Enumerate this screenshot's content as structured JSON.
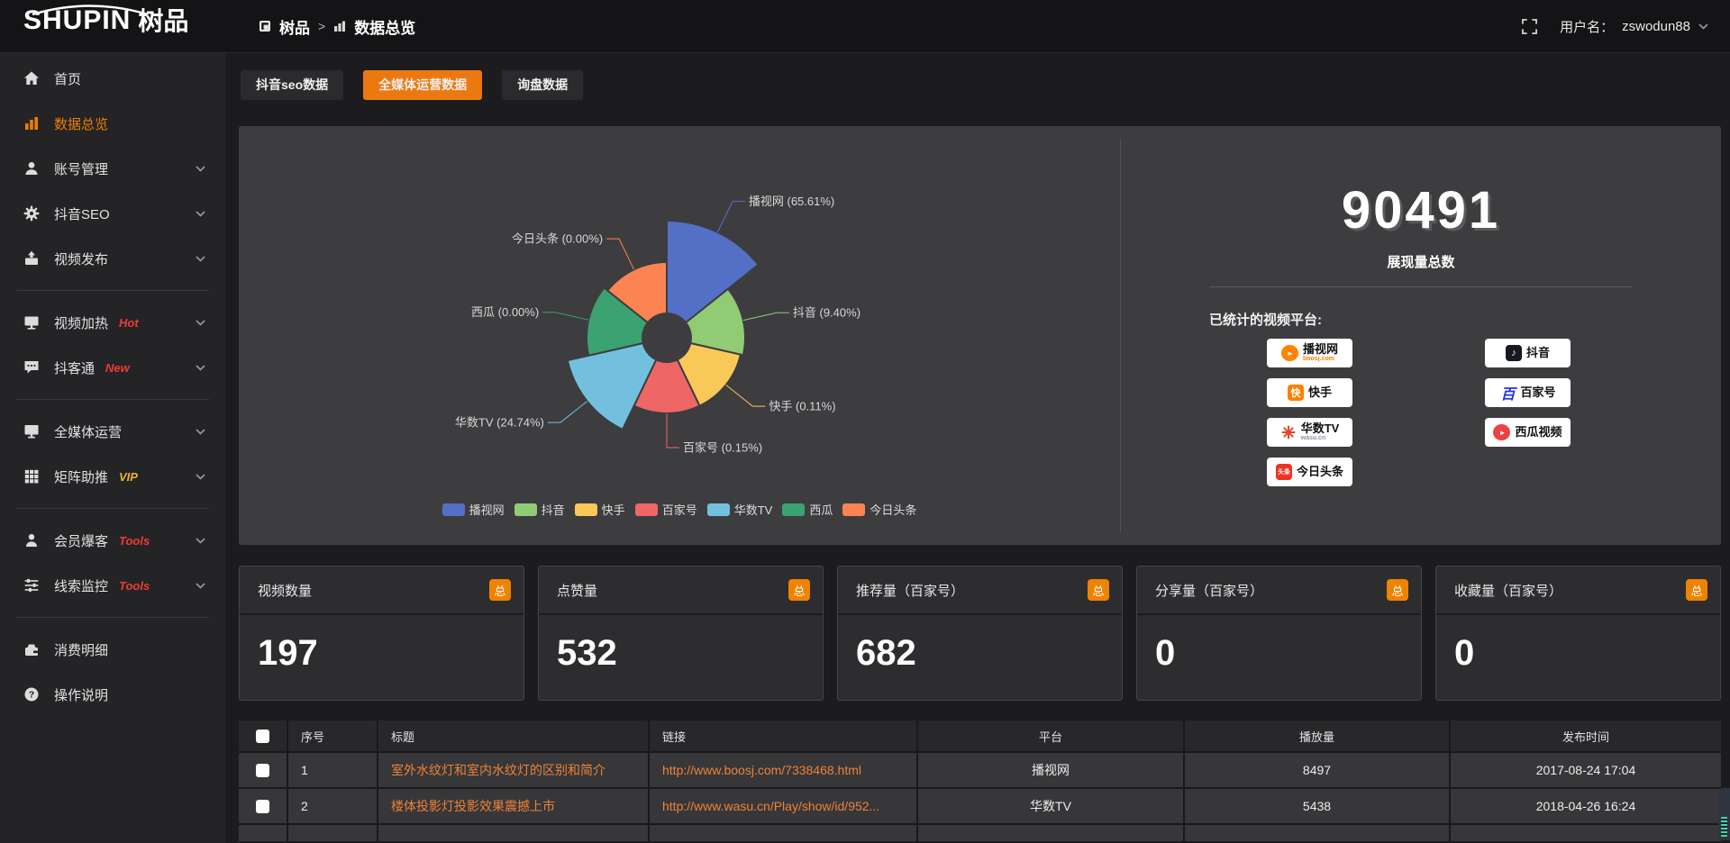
{
  "header": {
    "logo_main": "SHUPIN",
    "logo_sub": "树品",
    "breadcrumb": {
      "root": "树品",
      "separator": ">",
      "current": "数据总览"
    },
    "user_label": "用户名：",
    "username": "zswodun88"
  },
  "sidebar": {
    "items": [
      {
        "id": "home",
        "label": "首页",
        "icon": "home-icon"
      },
      {
        "id": "data-overview",
        "label": "数据总览",
        "icon": "chart-bars-icon",
        "active": true
      },
      {
        "id": "account-manage",
        "label": "账号管理",
        "icon": "user-icon",
        "chevron": true
      },
      {
        "id": "douyin-seo",
        "label": "抖音SEO",
        "icon": "gear-icon",
        "chevron": true
      },
      {
        "id": "video-publish",
        "label": "视频发布",
        "icon": "upload-box-icon",
        "chevron": true,
        "divider_after": true
      },
      {
        "id": "video-heat",
        "label": "视频加热",
        "badge": "Hot",
        "badge_color": "red",
        "icon": "screen-icon",
        "chevron": true
      },
      {
        "id": "douketong",
        "label": "抖客通",
        "badge": "New",
        "badge_color": "red",
        "icon": "chat-icon",
        "chevron": true,
        "divider_after": true
      },
      {
        "id": "media-operation",
        "label": "全媒体运营",
        "icon": "monitor-icon",
        "chevron": true
      },
      {
        "id": "matrix-boost",
        "label": "矩阵助推",
        "badge": "VIP",
        "badge_color": "yellow",
        "icon": "grid-icon",
        "chevron": true,
        "divider_after": true
      },
      {
        "id": "member-baoke",
        "label": "会员爆客",
        "badge": "Tools",
        "badge_color": "red",
        "icon": "person-icon",
        "chevron": true
      },
      {
        "id": "clue-monitor",
        "label": "线索监控",
        "badge": "Tools",
        "badge_color": "red",
        "icon": "sliders-icon",
        "chevron": true,
        "divider_after": true
      },
      {
        "id": "consumption-detail",
        "label": "消费明细",
        "icon": "wallet-icon"
      },
      {
        "id": "instructions",
        "label": "操作说明",
        "icon": "question-icon"
      }
    ]
  },
  "tabs": [
    {
      "label": "抖音seo数据",
      "active": false
    },
    {
      "label": "全媒体运营数据",
      "active": true
    },
    {
      "label": "询盘数据",
      "active": false
    }
  ],
  "chart_data": {
    "type": "pie",
    "subtype": "nightingale-rose",
    "title": "",
    "categories": [
      "播视网",
      "抖音",
      "快手",
      "百家号",
      "华数TV",
      "西瓜",
      "今日头条"
    ],
    "values": [
      65.61,
      9.4,
      0.11,
      0.15,
      24.74,
      0.0,
      0.0
    ],
    "unit": "percent",
    "labels": [
      "播视网 (65.61%)",
      "抖音 (9.40%)",
      "快手 (0.11%)",
      "百家号 (0.15%)",
      "华数TV (24.74%)",
      "西瓜 (0.00%)",
      "今日头条 (0.00%)"
    ],
    "colors": [
      "#5470C6",
      "#91CC75",
      "#FAC858",
      "#EE6666",
      "#73C0DE",
      "#3BA272",
      "#FC8452"
    ],
    "radii": [
      130,
      87,
      84,
      84,
      113,
      89,
      84
    ],
    "inner_radius": 27,
    "legend_position": "bottom",
    "legend": [
      "播视网",
      "抖音",
      "快手",
      "百家号",
      "华数TV",
      "西瓜",
      "今日头条"
    ]
  },
  "summary": {
    "total_value": "90491",
    "total_label": "展现量总数",
    "platforms_label": "已统计的视频平台:",
    "platform_badges": [
      {
        "name": "播视网",
        "sub": "boosj.com",
        "sub_color": "#f08200",
        "logo": "boosj-play-icon",
        "logo_type": "circle-play",
        "logo_color": "#ff8300"
      },
      {
        "name": "快手",
        "logo": "kuaishou-icon",
        "logo_type": "square-glyph",
        "glyph": "快",
        "logo_color": "#ff7e00"
      },
      {
        "name": "华数TV",
        "sub": "wasu.cn",
        "sub_color": "#8a94a8",
        "logo": "wasu-sunburst-icon",
        "logo_type": "sunburst",
        "logo_color": "#e8432d"
      },
      {
        "name": "今日头条",
        "logo": "toutiao-icon",
        "logo_type": "square-glyph",
        "glyph": "头条",
        "logo_color": "#ed3321"
      },
      {
        "name": "抖音",
        "logo": "douyin-icon",
        "logo_type": "square-glyph",
        "glyph": "♪",
        "logo_color": "#161823"
      },
      {
        "name": "百家号",
        "logo": "baijiahao-icon",
        "logo_type": "text-glyph",
        "glyph": "百",
        "logo_color": "#2932E1"
      },
      {
        "name": "西瓜视频",
        "logo": "xigua-icon",
        "logo_type": "circle-play",
        "logo_color": "#f04142"
      }
    ]
  },
  "stat_cards": [
    {
      "title": "视频数量",
      "badge": "总",
      "value": "197"
    },
    {
      "title": "点赞量",
      "badge": "总",
      "value": "532"
    },
    {
      "title": "推荐量（百家号）",
      "badge": "总",
      "value": "682"
    },
    {
      "title": "分享量（百家号）",
      "badge": "总",
      "value": "0"
    },
    {
      "title": "收藏量（百家号）",
      "badge": "总",
      "value": "0"
    }
  ],
  "table": {
    "headers": [
      "",
      "序号",
      "标题",
      "链接",
      "平台",
      "播放量",
      "发布时间"
    ],
    "rows": [
      {
        "index": "1",
        "title": "室外水纹灯和室内水纹灯的区别和简介",
        "link": "http://www.boosj.com/7338468.html",
        "platform": "播视网",
        "plays": "8497",
        "time": "2017-08-24 17:04"
      },
      {
        "index": "2",
        "title": "楼体投影灯投影效果震撼上市",
        "link": "http://www.wasu.cn/Play/show/id/952...",
        "platform": "华数TV",
        "plays": "5438",
        "time": "2018-04-26 16:24"
      }
    ]
  },
  "colors": {
    "accent_orange": "#ee7e01",
    "tab_orange": "#ec7910",
    "badge_orange": "#ef8200",
    "link_orange": "#ee8136",
    "hot_red": "#ee3b33",
    "vip_yellow": "#eeb030",
    "panel_bg": "#3d3d40"
  }
}
